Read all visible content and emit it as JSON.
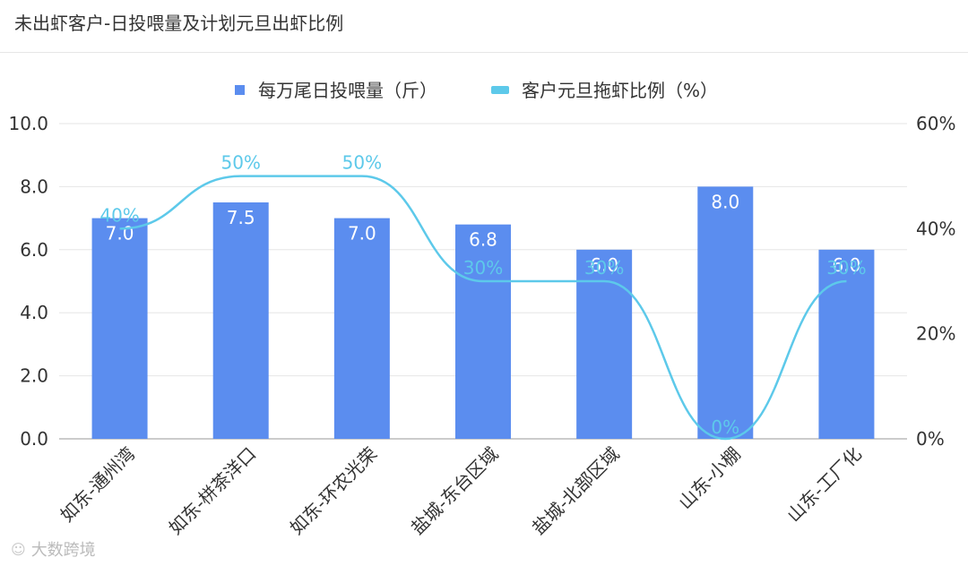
{
  "title": "未出虾客户-日投喂量及计划元旦出虾比例",
  "footer": {
    "logo_icon": "chat-bubble-icon",
    "text": "大数跨境"
  },
  "colors": {
    "bar": "#5b8def",
    "line": "#5dc9ea",
    "axis": "#888888",
    "grid": "#e6e6e6",
    "text": "#333333"
  },
  "chart_data": {
    "type": "bar",
    "categories": [
      "如东-通州湾",
      "如东-栟茶洋口",
      "如东-环农光荣",
      "盐城-东台区域",
      "盐城-北部区域",
      "山东-小棚",
      "山东-工厂化"
    ],
    "series": [
      {
        "name": "每万尾日投喂量（斤）",
        "type": "bar",
        "axis": "left",
        "values": [
          7.0,
          7.5,
          7.0,
          6.8,
          6.0,
          8.0,
          6.0
        ],
        "labels": [
          "7.0",
          "7.5",
          "7.0",
          "6.8",
          "6.0",
          "8.0",
          "6.0"
        ]
      },
      {
        "name": "客户元旦拖虾比例（%）",
        "type": "line",
        "axis": "right",
        "values": [
          40,
          50,
          50,
          30,
          30,
          0,
          30
        ],
        "labels": [
          "40%",
          "50%",
          "50%",
          "30%",
          "30%",
          "0%",
          "30%"
        ]
      }
    ],
    "y_left": {
      "ylim": [
        0,
        10
      ],
      "ticks": [
        "0.0",
        "2.0",
        "4.0",
        "6.0",
        "8.0",
        "10.0"
      ]
    },
    "y_right": {
      "ylim": [
        0,
        60
      ],
      "ticks": [
        "0%",
        "20%",
        "40%",
        "60%"
      ]
    },
    "grid": true,
    "legend": "top-center"
  }
}
